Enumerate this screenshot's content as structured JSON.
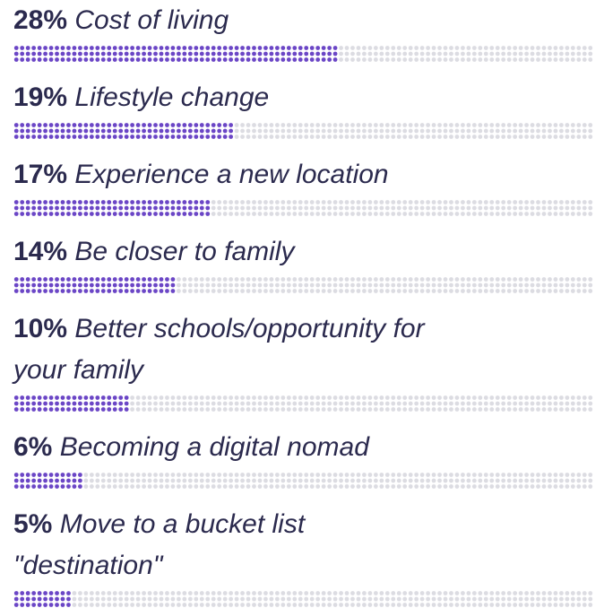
{
  "chart_data": {
    "type": "dot-bar",
    "categories": [
      "Cost of living",
      "Lifestyle change",
      "Experience a new location",
      "Be closer to family",
      "Better schools/opportunity for your family",
      "Becoming a digital nomad",
      "Move to a bucket list \"destination\""
    ],
    "values": [
      28,
      19,
      17,
      14,
      10,
      6,
      5
    ],
    "value_labels": [
      "28%",
      "19%",
      "17%",
      "14%",
      "10%",
      "6%",
      "5%"
    ],
    "xlim": [
      0,
      50
    ],
    "color": "#6b46c6",
    "track_color": "#dcdce2"
  }
}
